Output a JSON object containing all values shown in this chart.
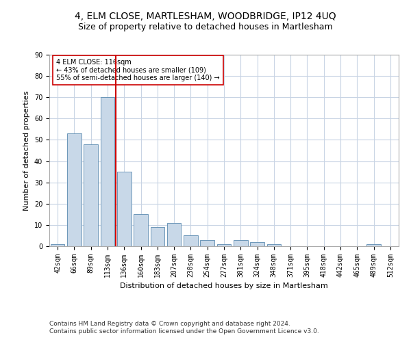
{
  "title": "4, ELM CLOSE, MARTLESHAM, WOODBRIDGE, IP12 4UQ",
  "subtitle": "Size of property relative to detached houses in Martlesham",
  "xlabel": "Distribution of detached houses by size in Martlesham",
  "ylabel": "Number of detached properties",
  "categories": [
    "42sqm",
    "66sqm",
    "89sqm",
    "113sqm",
    "136sqm",
    "160sqm",
    "183sqm",
    "207sqm",
    "230sqm",
    "254sqm",
    "277sqm",
    "301sqm",
    "324sqm",
    "348sqm",
    "371sqm",
    "395sqm",
    "418sqm",
    "442sqm",
    "465sqm",
    "489sqm",
    "512sqm"
  ],
  "values": [
    1,
    53,
    48,
    70,
    35,
    15,
    9,
    11,
    5,
    3,
    1,
    3,
    2,
    1,
    0,
    0,
    0,
    0,
    0,
    1,
    0
  ],
  "bar_color": "#c8d8e8",
  "bar_edge_color": "#5a8ab0",
  "vline_x": 3.5,
  "vline_color": "#cc0000",
  "annotation_text": "4 ELM CLOSE: 116sqm\n← 43% of detached houses are smaller (109)\n55% of semi-detached houses are larger (140) →",
  "annotation_box_color": "white",
  "annotation_box_edge": "#cc0000",
  "ylim": [
    0,
    90
  ],
  "yticks": [
    0,
    10,
    20,
    30,
    40,
    50,
    60,
    70,
    80,
    90
  ],
  "footer1": "Contains HM Land Registry data © Crown copyright and database right 2024.",
  "footer2": "Contains public sector information licensed under the Open Government Licence v3.0.",
  "title_fontsize": 10,
  "subtitle_fontsize": 9,
  "label_fontsize": 8,
  "tick_fontsize": 7,
  "annotation_fontsize": 7,
  "footer_fontsize": 6.5
}
